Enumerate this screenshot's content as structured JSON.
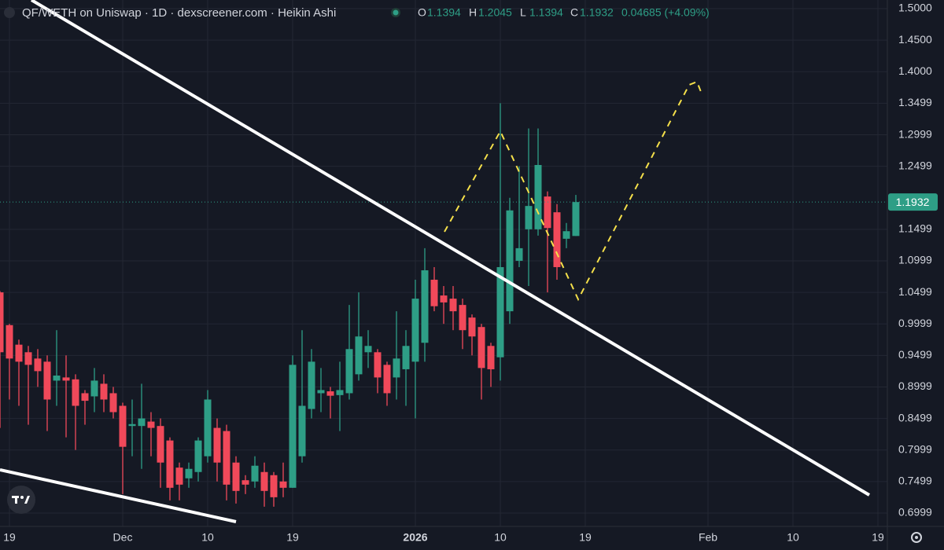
{
  "chart_data": {
    "type": "candlestick",
    "title": "QF/WETH on Uniswap · 1D · dexscreener.com · Heikin Ashi",
    "ohlc_labels": [
      "O",
      "H",
      "L",
      "C"
    ],
    "change_label": "0.04685 (+4.09%)",
    "up_color": "#2e9e86",
    "down_color": "#f0495a",
    "grid": true,
    "last_price_line": true,
    "ylim": [
      0.6787,
      1.5137
    ],
    "yticks": [
      {
        "value": 1.5,
        "label": "1.5000"
      },
      {
        "value": 1.45,
        "label": "1.4500"
      },
      {
        "value": 1.4,
        "label": "1.4000"
      },
      1.3499,
      1.2999,
      1.2499,
      1.1499,
      1.0999,
      1.0499,
      0.9999,
      0.9499,
      0.8999,
      0.8499,
      0.7999,
      0.7499,
      0.6999
    ],
    "categories": [
      null,
      "19",
      null,
      null,
      null,
      null,
      null,
      null,
      null,
      null,
      null,
      null,
      null,
      "Dec",
      null,
      null,
      null,
      null,
      null,
      null,
      null,
      null,
      "10",
      null,
      null,
      null,
      null,
      null,
      null,
      null,
      null,
      "19",
      null,
      null,
      null,
      null,
      null,
      null,
      null,
      null,
      null,
      null,
      null,
      null,
      "2026",
      null,
      null,
      null,
      null,
      null,
      null,
      null,
      null,
      "10",
      null,
      null,
      null,
      null,
      null,
      null,
      null,
      null,
      "19",
      null,
      null,
      null,
      null,
      null,
      null,
      null,
      null,
      null,
      null,
      null,
      null,
      "Feb",
      null,
      null,
      null,
      null,
      null,
      null,
      null,
      null,
      "10",
      null,
      null,
      null,
      null,
      null,
      null,
      null,
      null,
      "19"
    ],
    "open": [
      1.05,
      0.998,
      0.967,
      0.955,
      0.945,
      0.94,
      0.91,
      0.915,
      0.912,
      0.89,
      0.885,
      0.905,
      0.89,
      0.87,
      0.838,
      0.838,
      0.845,
      0.838,
      0.815,
      0.772,
      0.755,
      0.765,
      0.79,
      0.835,
      0.83,
      0.78,
      0.752,
      0.75,
      0.765,
      0.76,
      0.75,
      0.74,
      0.79,
      0.865,
      0.89,
      0.893,
      0.887,
      0.89,
      0.92,
      0.955,
      0.955,
      0.935,
      0.915,
      0.928,
      0.94,
      0.97,
      1.07,
      1.045,
      1.04,
      1.03,
      1.01,
      0.995,
      0.965,
      0.947,
      1.02,
      1.1,
      1.15,
      1.15,
      1.202,
      1.177,
      1.135,
      1.1394,
      null,
      null,
      null,
      null,
      null,
      null,
      null,
      null,
      null,
      null,
      null,
      null,
      null,
      null,
      null,
      null,
      null,
      null,
      null,
      null,
      null,
      null,
      null,
      null,
      null,
      null,
      null,
      null,
      null,
      null,
      null,
      null
    ],
    "high": [
      1.052,
      1.0,
      0.975,
      0.965,
      0.96,
      0.95,
      0.99,
      0.95,
      0.92,
      0.895,
      0.93,
      0.92,
      0.9,
      0.875,
      0.88,
      0.905,
      0.86,
      0.85,
      0.82,
      0.78,
      0.78,
      0.82,
      0.895,
      0.85,
      0.84,
      0.79,
      0.76,
      0.79,
      0.78,
      0.765,
      0.78,
      0.95,
      0.99,
      0.96,
      0.93,
      0.9,
      0.94,
      1.03,
      1.05,
      0.99,
      0.96,
      0.94,
      1.02,
      0.99,
      1.07,
      1.12,
      1.09,
      1.06,
      1.06,
      1.04,
      1.015,
      1.0,
      0.97,
      1.35,
      1.2,
      1.25,
      1.31,
      1.31,
      1.21,
      1.19,
      1.16,
      1.2045,
      null,
      null,
      null,
      null,
      null,
      null,
      null,
      null,
      null,
      null,
      null,
      null,
      null,
      null,
      null,
      null,
      null,
      null,
      null,
      null,
      null,
      null,
      null,
      null,
      null,
      null,
      null,
      null,
      null,
      null,
      null,
      null
    ],
    "low": [
      0.835,
      0.88,
      0.87,
      0.84,
      0.9,
      0.83,
      0.87,
      0.82,
      0.8,
      0.84,
      0.86,
      0.86,
      0.85,
      0.73,
      0.79,
      0.77,
      0.79,
      0.74,
      0.72,
      0.72,
      0.74,
      0.75,
      0.78,
      0.75,
      0.72,
      0.715,
      0.73,
      0.74,
      0.71,
      0.71,
      0.725,
      0.74,
      0.78,
      0.85,
      0.86,
      0.85,
      0.83,
      0.88,
      0.91,
      0.93,
      0.89,
      0.87,
      0.88,
      0.87,
      0.85,
      0.94,
      1.02,
      1.0,
      0.99,
      0.96,
      0.95,
      0.88,
      0.9,
      0.91,
      1.0,
      1.09,
      1.06,
      1.14,
      1.05,
      1.07,
      1.12,
      1.1394,
      null,
      null,
      null,
      null,
      null,
      null,
      null,
      null,
      null,
      null,
      null,
      null,
      null,
      null,
      null,
      null,
      null,
      null,
      null,
      null,
      null,
      null,
      null,
      null,
      null,
      null,
      null,
      null,
      null,
      null,
      null,
      null
    ],
    "close": [
      0.955,
      0.945,
      0.94,
      0.935,
      0.925,
      0.88,
      0.918,
      0.91,
      0.87,
      0.878,
      0.91,
      0.88,
      0.86,
      0.805,
      0.841,
      0.85,
      0.835,
      0.78,
      0.74,
      0.745,
      0.77,
      0.815,
      0.88,
      0.78,
      0.745,
      0.735,
      0.745,
      0.775,
      0.735,
      0.725,
      0.74,
      0.935,
      0.87,
      0.94,
      0.895,
      0.886,
      0.895,
      0.96,
      0.98,
      0.965,
      0.915,
      0.89,
      0.945,
      0.965,
      1.04,
      1.085,
      1.028,
      1.034,
      1.02,
      0.99,
      0.98,
      0.93,
      0.928,
      1.09,
      1.18,
      1.12,
      1.187,
      1.252,
      1.152,
      1.09,
      1.147,
      1.1932,
      null,
      null,
      null,
      null,
      null,
      null,
      null,
      null,
      null,
      null,
      null,
      null,
      null,
      null,
      null,
      null,
      null,
      null,
      null,
      null,
      null,
      null,
      null,
      null,
      null,
      null,
      null,
      null,
      null,
      null,
      null,
      null
    ]
  }
}
